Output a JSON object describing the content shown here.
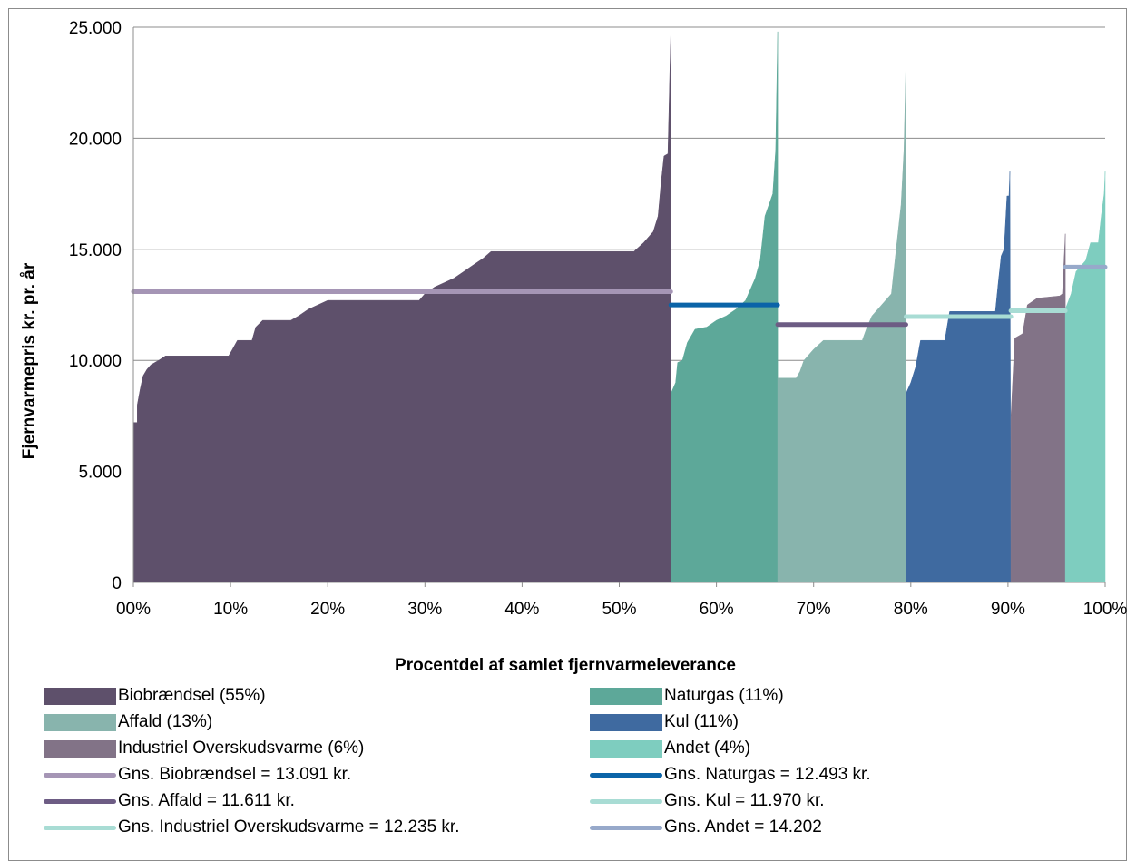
{
  "chart_data": {
    "type": "area",
    "xlabel": "Procentdel af samlet fjernvarmeleverance",
    "ylabel": "Fjernvarmepris kr. pr. år",
    "xlim": [
      0,
      100
    ],
    "ylim": [
      0,
      25000
    ],
    "x_ticks": [
      "00%",
      "10%",
      "20%",
      "30%",
      "40%",
      "50%",
      "60%",
      "70%",
      "80%",
      "90%",
      "100%"
    ],
    "y_ticks": [
      "0",
      "5.000",
      "10.000",
      "15.000",
      "20.000",
      "25.000"
    ],
    "grid": "horizontal",
    "legend_position": "bottom",
    "series": [
      {
        "name": "Biobrændsel (55%)",
        "color": "#5e506b",
        "x_range": [
          0,
          55.3
        ],
        "points": [
          [
            0,
            7200
          ],
          [
            0.4,
            7200
          ],
          [
            0.4,
            8000
          ],
          [
            0.7,
            8700
          ],
          [
            1,
            9300
          ],
          [
            1.4,
            9600
          ],
          [
            1.8,
            9800
          ],
          [
            2.6,
            10000
          ],
          [
            3.3,
            10200
          ],
          [
            9.8,
            10200
          ],
          [
            10.2,
            10500
          ],
          [
            10.7,
            10900
          ],
          [
            12.2,
            10900
          ],
          [
            12.6,
            11500
          ],
          [
            13.3,
            11800
          ],
          [
            16.2,
            11800
          ],
          [
            17,
            12000
          ],
          [
            18,
            12300
          ],
          [
            19,
            12500
          ],
          [
            20,
            12700
          ],
          [
            29.4,
            12700
          ],
          [
            30,
            13000
          ],
          [
            31,
            13300
          ],
          [
            32,
            13500
          ],
          [
            33,
            13700
          ],
          [
            34,
            14000
          ],
          [
            35,
            14300
          ],
          [
            36,
            14600
          ],
          [
            36.8,
            14900
          ],
          [
            51.5,
            14900
          ],
          [
            52.5,
            15300
          ],
          [
            53.5,
            15800
          ],
          [
            54,
            16500
          ],
          [
            54.3,
            18000
          ],
          [
            54.6,
            19200
          ],
          [
            55,
            19300
          ],
          [
            55.1,
            21000
          ],
          [
            55.2,
            23000
          ],
          [
            55.3,
            24700
          ],
          [
            55.3,
            0
          ]
        ],
        "average": {
          "value": 13091,
          "x_range": [
            0,
            55.3
          ],
          "color": "#a595b5"
        }
      },
      {
        "name": "Naturgas (11%)",
        "color": "#5da899",
        "x_range": [
          55.3,
          66.3
        ],
        "points": [
          [
            55.3,
            8500
          ],
          [
            55.8,
            9000
          ],
          [
            56,
            9900
          ],
          [
            56.5,
            10000
          ],
          [
            57,
            10800
          ],
          [
            57.8,
            11400
          ],
          [
            59,
            11500
          ],
          [
            60,
            11800
          ],
          [
            61,
            12000
          ],
          [
            62,
            12300
          ],
          [
            63,
            12700
          ],
          [
            64,
            13700
          ],
          [
            64.5,
            14500
          ],
          [
            65,
            16500
          ],
          [
            65.8,
            17500
          ],
          [
            66.1,
            19500
          ],
          [
            66.3,
            24800
          ],
          [
            66.3,
            0
          ]
        ],
        "average": {
          "value": 12493,
          "x_range": [
            55.3,
            66.3
          ],
          "color": "#0b64a8"
        }
      },
      {
        "name": "Affald (13%)",
        "color": "#88b4ad",
        "x_range": [
          66.3,
          79.5
        ],
        "points": [
          [
            66.3,
            9200
          ],
          [
            68.2,
            9200
          ],
          [
            68.6,
            9500
          ],
          [
            69,
            10000
          ],
          [
            70,
            10500
          ],
          [
            71,
            10900
          ],
          [
            75,
            10900
          ],
          [
            75.5,
            11500
          ],
          [
            76,
            12000
          ],
          [
            77,
            12500
          ],
          [
            78,
            13000
          ],
          [
            78.5,
            15000
          ],
          [
            79,
            17000
          ],
          [
            79.3,
            19500
          ],
          [
            79.5,
            23300
          ],
          [
            79.5,
            0
          ]
        ],
        "average": {
          "value": 11611,
          "x_range": [
            66.3,
            79.5
          ],
          "color": "#6d5c84"
        }
      },
      {
        "name": "Kul (11%)",
        "color": "#3f6aa0",
        "x_range": [
          79.5,
          90.3
        ],
        "points": [
          [
            79.5,
            8500
          ],
          [
            80,
            9000
          ],
          [
            80.5,
            9700
          ],
          [
            81,
            10900
          ],
          [
            83.5,
            10900
          ],
          [
            84,
            12200
          ],
          [
            88.7,
            12200
          ],
          [
            89,
            13500
          ],
          [
            89.3,
            14700
          ],
          [
            89.6,
            15000
          ],
          [
            89.9,
            17400
          ],
          [
            90.1,
            17400
          ],
          [
            90.2,
            18500
          ],
          [
            90.3,
            0
          ]
        ],
        "average": {
          "value": 11970,
          "x_range": [
            79.5,
            90.3
          ],
          "color": "#a8dcd4"
        }
      },
      {
        "name": "Industriel Overskudsvarme (6%)",
        "color": "#827387",
        "x_range": [
          90.3,
          95.9
        ],
        "points": [
          [
            90.3,
            7400
          ],
          [
            90.7,
            11000
          ],
          [
            91.5,
            11200
          ],
          [
            92,
            12500
          ],
          [
            93,
            12800
          ],
          [
            95.3,
            12900
          ],
          [
            95.6,
            13000
          ],
          [
            95.9,
            15700
          ],
          [
            95.9,
            0
          ]
        ],
        "average": {
          "value": 12235,
          "x_range": [
            90.3,
            95.9
          ],
          "color": "#a8dcd4"
        }
      },
      {
        "name": "Andet (4%)",
        "color": "#7ecdbf",
        "x_range": [
          95.9,
          100
        ],
        "points": [
          [
            95.9,
            12300
          ],
          [
            96.5,
            13000
          ],
          [
            97,
            14000
          ],
          [
            98,
            14500
          ],
          [
            98.5,
            15300
          ],
          [
            99.3,
            15300
          ],
          [
            99.6,
            16500
          ],
          [
            99.9,
            17500
          ],
          [
            100,
            18500
          ],
          [
            100,
            0
          ]
        ],
        "average": {
          "value": 14202,
          "x_range": [
            95.9,
            100
          ],
          "color": "#97a9ca"
        }
      }
    ]
  },
  "legend": [
    {
      "label": "Biobrændsel (55%)",
      "kind": "swatch",
      "color": "#5e506b"
    },
    {
      "label": "Naturgas (11%)",
      "kind": "swatch",
      "color": "#5da899"
    },
    {
      "label": "Affald (13%)",
      "kind": "swatch",
      "color": "#88b4ad"
    },
    {
      "label": "Kul (11%)",
      "kind": "swatch",
      "color": "#3f6aa0"
    },
    {
      "label": "Industriel Overskudsvarme (6%)",
      "kind": "swatch",
      "color": "#827387"
    },
    {
      "label": "Andet (4%)",
      "kind": "swatch",
      "color": "#7ecdbf"
    },
    {
      "label": "Gns. Biobrændsel = 13.091 kr.",
      "kind": "line",
      "color": "#a595b5"
    },
    {
      "label": "Gns. Naturgas = 12.493 kr.",
      "kind": "line",
      "color": "#0b64a8"
    },
    {
      "label": "Gns. Affald = 11.611 kr.",
      "kind": "line",
      "color": "#6d5c84"
    },
    {
      "label": "Gns. Kul = 11.970 kr.",
      "kind": "line",
      "color": "#a8dcd4"
    },
    {
      "label": "Gns. Industriel Overskudsvarme = 12.235 kr.",
      "kind": "line",
      "color": "#a8dcd4"
    },
    {
      "label": "Gns. Andet = 14.202",
      "kind": "line",
      "color": "#97a9ca"
    }
  ]
}
